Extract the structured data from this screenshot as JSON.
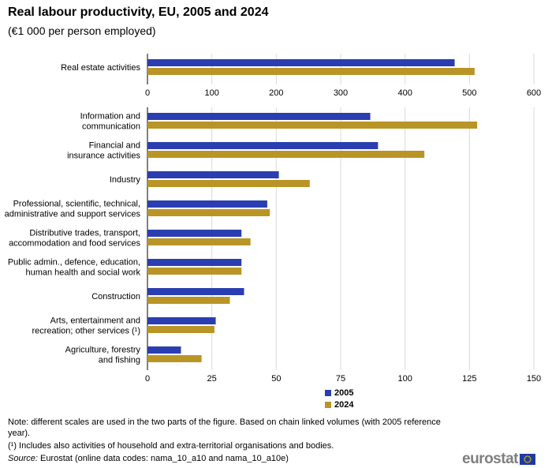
{
  "chart_data": {
    "type": "bar",
    "orientation": "horizontal",
    "title": "Real labour productivity, EU, 2005 and 2024",
    "subtitle": "(€1 000 per person employed)",
    "series_names": [
      "2005",
      "2024"
    ],
    "colors": {
      "2005": "#2a3eb1",
      "2024": "#b99528"
    },
    "panels": [
      {
        "categories": [
          [
            "Real estate activities"
          ]
        ],
        "series": [
          {
            "name": "2005",
            "values": [
              477
            ]
          },
          {
            "name": "2024",
            "values": [
              508
            ]
          }
        ],
        "xlim": [
          0,
          600
        ],
        "ticks": [
          0,
          100,
          200,
          300,
          400,
          500,
          600
        ]
      },
      {
        "categories": [
          [
            "Information and",
            "communication"
          ],
          [
            "Financial and",
            "insurance activities"
          ],
          [
            "Industry"
          ],
          [
            "Professional, scientific, technical,",
            "administrative and support services"
          ],
          [
            "Distributive trades, transport,",
            "accommodation and food services"
          ],
          [
            "Public admin., defence, education,",
            "human health and social work"
          ],
          [
            "Construction"
          ],
          [
            "Arts, entertainment and",
            "recreation; other services (¹)"
          ],
          [
            "Agriculture, forestry",
            "and fishing"
          ]
        ],
        "series": [
          {
            "name": "2005",
            "values": [
              86.5,
              89.5,
              51,
              46.5,
              36.5,
              36.5,
              37.5,
              26.5,
              13
            ]
          },
          {
            "name": "2024",
            "values": [
              128,
              107.5,
              63,
              47.5,
              40,
              36.5,
              32,
              26,
              21
            ]
          }
        ],
        "xlim": [
          0,
          150
        ],
        "ticks": [
          0,
          25,
          50,
          75,
          100,
          125,
          150
        ]
      }
    ]
  },
  "legend": [
    {
      "label": "2005",
      "color": "#2a3eb1"
    },
    {
      "label": "2024",
      "color": "#b99528"
    }
  ],
  "notes": {
    "note": "Note: different scales are used in the two parts of the figure. Based on chain linked volumes (with 2005 reference year).",
    "footnote": "(¹) Includes also activities of household and extra-territorial organisations and bodies.",
    "source_label": "Source:",
    "source_text": " Eurostat (online data codes: nama_10_a10 and nama_10_a10e)"
  },
  "logo": {
    "text": "eurostat"
  }
}
